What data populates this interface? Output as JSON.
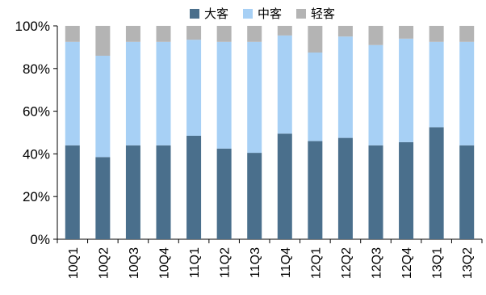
{
  "chart_data": {
    "type": "bar",
    "stacked": true,
    "categories": [
      "10Q1",
      "10Q2",
      "10Q3",
      "10Q4",
      "11Q1",
      "11Q2",
      "11Q3",
      "11Q4",
      "12Q1",
      "12Q2",
      "12Q3",
      "12Q4",
      "13Q1",
      "13Q2"
    ],
    "series": [
      {
        "name": "大客",
        "color": "#4a6f8c",
        "values": [
          44,
          38.5,
          44,
          44,
          48.5,
          42.5,
          40.5,
          49.5,
          46,
          47.5,
          44,
          45.5,
          52.5,
          44
        ]
      },
      {
        "name": "中客",
        "color": "#a7d0f5",
        "values": [
          48.5,
          47.5,
          48.5,
          48.5,
          45,
          50,
          52,
          46,
          41.5,
          47.5,
          47,
          48.5,
          40,
          48.5
        ]
      },
      {
        "name": "轻客",
        "color": "#b4b4b4",
        "values": [
          7.5,
          14,
          7.5,
          7.5,
          6.5,
          7.5,
          7.5,
          4.5,
          12.5,
          5,
          9,
          6,
          7.5,
          7.5
        ]
      }
    ],
    "yticks": [
      "0%",
      "20%",
      "40%",
      "60%",
      "80%",
      "100%"
    ],
    "ylim": [
      0,
      100
    ],
    "legend_position": "top-center",
    "grid": false
  }
}
